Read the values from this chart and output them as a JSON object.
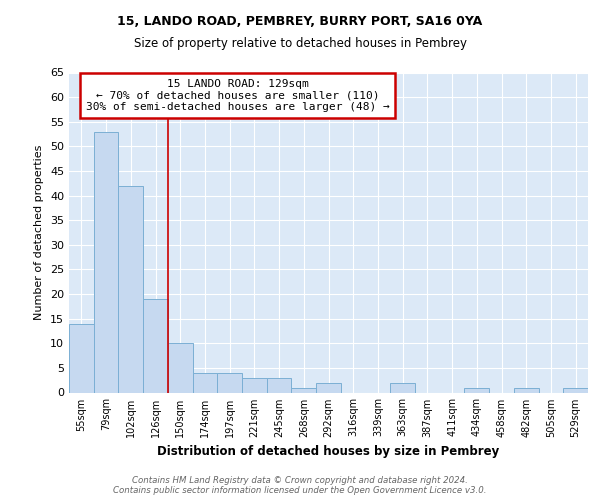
{
  "title1": "15, LANDO ROAD, PEMBREY, BURRY PORT, SA16 0YA",
  "title2": "Size of property relative to detached houses in Pembrey",
  "xlabel": "Distribution of detached houses by size in Pembrey",
  "ylabel": "Number of detached properties",
  "categories": [
    "55sqm",
    "79sqm",
    "102sqm",
    "126sqm",
    "150sqm",
    "174sqm",
    "197sqm",
    "221sqm",
    "245sqm",
    "268sqm",
    "292sqm",
    "316sqm",
    "339sqm",
    "363sqm",
    "387sqm",
    "411sqm",
    "434sqm",
    "458sqm",
    "482sqm",
    "505sqm",
    "529sqm"
  ],
  "values": [
    14,
    53,
    42,
    19,
    10,
    4,
    4,
    3,
    3,
    1,
    2,
    0,
    0,
    2,
    0,
    0,
    1,
    0,
    1,
    0,
    1
  ],
  "bar_color": "#c6d9f0",
  "bar_edge_color": "#7bafd4",
  "highlight_bar_index": 3,
  "highlight_line_color": "#cc0000",
  "annotation_line1": "15 LANDO ROAD: 129sqm",
  "annotation_line2": "← 70% of detached houses are smaller (110)",
  "annotation_line3": "30% of semi-detached houses are larger (48) →",
  "annotation_box_color": "#ffffff",
  "annotation_box_edge": "#cc0000",
  "ylim": [
    0,
    65
  ],
  "yticks": [
    0,
    5,
    10,
    15,
    20,
    25,
    30,
    35,
    40,
    45,
    50,
    55,
    60,
    65
  ],
  "footnote": "Contains HM Land Registry data © Crown copyright and database right 2024.\nContains public sector information licensed under the Open Government Licence v3.0.",
  "bg_color": "#dce9f7",
  "fig_bg_color": "#ffffff"
}
